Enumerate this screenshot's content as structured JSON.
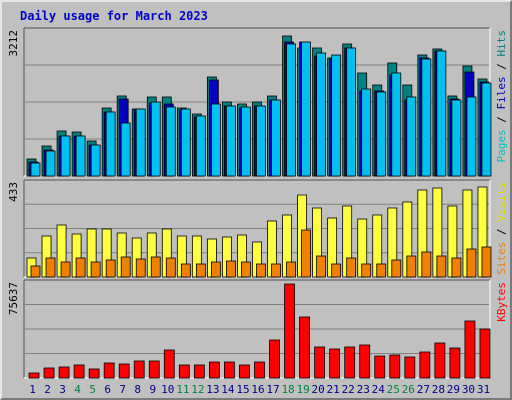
{
  "chart_data": {
    "type": "bar",
    "title": "Daily usage for March 2023",
    "days": [
      "1",
      "2",
      "3",
      "4",
      "5",
      "6",
      "7",
      "8",
      "9",
      "10",
      "11",
      "12",
      "13",
      "14",
      "15",
      "16",
      "17",
      "18",
      "19",
      "20",
      "21",
      "22",
      "23",
      "24",
      "25",
      "26",
      "27",
      "28",
      "29",
      "30",
      "31"
    ],
    "weekend_days": [
      "4",
      "5",
      "11",
      "12",
      "18",
      "19",
      "25",
      "26"
    ],
    "panels": [
      {
        "id": "hits_files_pages",
        "max_label": "3212",
        "max": 3212,
        "side_labels": [
          {
            "text": "Pages",
            "color": "#00c0c0"
          },
          {
            "text": " / ",
            "color": "#000000"
          },
          {
            "text": "Files",
            "color": "#0000c0"
          },
          {
            "text": " / ",
            "color": "#000000"
          },
          {
            "text": "Hits",
            "color": "#008080"
          }
        ],
        "series": [
          {
            "name": "Hits",
            "color": "#008080",
            "values": [
              380,
              660,
              1000,
              980,
              790,
              1520,
              1780,
              1500,
              1760,
              1760,
              1520,
              1390,
              2200,
              1660,
              1600,
              1640,
              1780,
              3120,
              2860,
              2860,
              2640,
              2940,
              2300,
              2040,
              2520,
              2040,
              2690,
              2840,
              1780,
              2450,
              2160
            ]
          },
          {
            "name": "Files",
            "color": "#0000c0",
            "values": [
              320,
              580,
              900,
              900,
              700,
              1420,
              1720,
              1480,
              1620,
              1600,
              1480,
              1320,
              2140,
              1560,
              1520,
              1560,
              1700,
              2980,
              2980,
              2680,
              2620,
              2860,
              1900,
              1900,
              2260,
              1700,
              2640,
              2780,
              1720,
              2320,
              2100
            ]
          },
          {
            "name": "Pages",
            "color": "#00c0f0",
            "values": [
              280,
              560,
              900,
              900,
              700,
              1420,
              1180,
              1500,
              1650,
              1540,
              1500,
              1340,
              1600,
              1560,
              1540,
              1560,
              1700,
              2940,
              3000,
              2740,
              2700,
              2860,
              1940,
              1870,
              2300,
              1760,
              2600,
              2780,
              1700,
              1760,
              2080
            ]
          }
        ]
      },
      {
        "id": "visits_sites",
        "max_label": "433",
        "max": 433,
        "side_labels": [
          {
            "text": "Sites",
            "color": "#f08000"
          },
          {
            "text": " / ",
            "color": "#000000"
          },
          {
            "text": "Visits",
            "color": "#e0e000"
          }
        ],
        "series": [
          {
            "name": "Visits",
            "color": "#ffff40",
            "values": [
              90,
              190,
              240,
              200,
              225,
              225,
              205,
              180,
              205,
              225,
              190,
              190,
              175,
              185,
              195,
              165,
              260,
              290,
              380,
              320,
              275,
              330,
              270,
              290,
              320,
              350,
              405,
              415,
              330,
              405,
              418
            ]
          },
          {
            "name": "Sites",
            "color": "#f08000",
            "values": [
              50,
              90,
              70,
              90,
              70,
              80,
              95,
              85,
              95,
              90,
              60,
              60,
              70,
              75,
              70,
              60,
              60,
              70,
              220,
              100,
              60,
              90,
              60,
              60,
              80,
              100,
              115,
              100,
              90,
              130,
              140
            ]
          }
        ]
      },
      {
        "id": "kbytes",
        "max_label": "75637",
        "max": 75637,
        "side_labels": [
          {
            "text": "KBytes",
            "color": "#ff0000"
          }
        ],
        "series": [
          {
            "name": "KBytes",
            "color": "#ff0000",
            "values": [
              4300,
              7800,
              9200,
              10200,
              7200,
              11800,
              11500,
              13700,
              14000,
              22900,
              10500,
              10600,
              12800,
              12700,
              10700,
              13100,
              30700,
              75637,
              48900,
              24600,
              23200,
              24600,
              26400,
              17400,
              18200,
              16700,
              21300,
              28000,
              24000,
              46200,
              39300
            ]
          }
        ]
      }
    ]
  }
}
